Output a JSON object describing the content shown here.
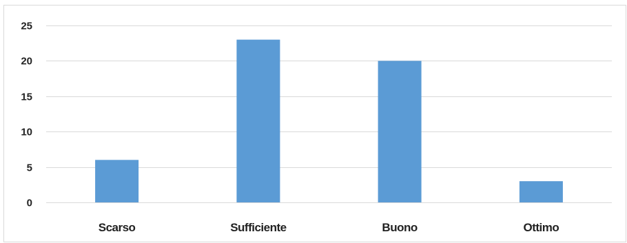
{
  "chart_data": {
    "type": "bar",
    "title": "",
    "xlabel": "",
    "ylabel": "",
    "categories": [
      "Scarso",
      "Sufficiente",
      "Buono",
      "Ottimo"
    ],
    "values": [
      6,
      23,
      20,
      3
    ],
    "ylim": [
      0,
      25
    ],
    "yticks": [
      0,
      5,
      10,
      15,
      20,
      25
    ],
    "grid": true,
    "legend": "none",
    "bar_color": "#5b9bd5",
    "grid_color": "#d9d9d9"
  }
}
